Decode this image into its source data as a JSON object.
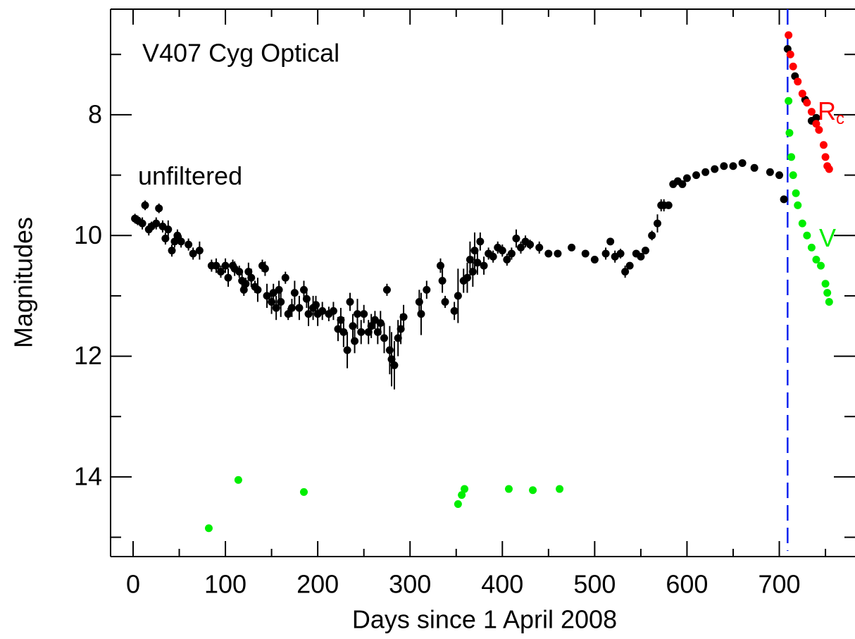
{
  "chart_data": {
    "type": "scatter",
    "title": "V407 Cyg Optical",
    "xlabel": "Days since 1 April 2008",
    "ylabel": "Magnitudes",
    "xlim": [
      -24.4,
      782
    ],
    "ylim": [
      6.25,
      15.32
    ],
    "y_inverted": true,
    "xticks": [
      0,
      100,
      200,
      300,
      400,
      500,
      600,
      700
    ],
    "xticks_minor": [
      50,
      150,
      250,
      350,
      450,
      550,
      650,
      750
    ],
    "yticks": [
      8,
      10,
      12,
      14
    ],
    "yticks_minor": [
      7,
      9,
      11,
      13,
      15
    ],
    "vline": {
      "x": 709,
      "color": "#0022ee"
    },
    "series": [
      {
        "name": "unfiltered",
        "color": "#000000",
        "x": [
          2,
          5,
          10,
          13,
          17,
          20,
          25,
          28,
          32,
          35,
          38,
          42,
          45,
          48,
          52,
          60,
          65,
          72,
          85,
          90,
          95,
          100,
          103,
          108,
          110,
          115,
          118,
          120,
          122,
          125,
          128,
          132,
          135,
          140,
          143,
          145,
          150,
          152,
          155,
          158,
          160,
          165,
          168,
          172,
          175,
          180,
          185,
          188,
          190,
          195,
          198,
          200,
          205,
          212,
          217,
          222,
          225,
          228,
          232,
          235,
          238,
          240,
          243,
          247,
          250,
          255,
          258,
          262,
          265,
          268,
          272,
          275,
          278,
          280,
          283,
          287,
          290,
          293,
          310,
          312,
          318,
          333,
          335,
          338,
          348,
          352,
          358,
          362,
          365,
          368,
          370,
          373,
          376,
          380,
          385,
          390,
          395,
          400,
          405,
          410,
          415,
          420,
          425,
          430,
          440,
          450,
          460,
          475,
          490,
          500,
          512,
          517,
          522,
          528,
          533,
          538,
          545,
          550,
          555,
          562,
          568,
          572,
          575,
          580,
          585,
          590,
          595,
          600,
          610,
          620,
          630,
          640,
          650,
          660,
          673,
          690,
          700,
          705,
          709,
          717,
          728,
          735,
          740
        ],
        "values": [
          9.72,
          9.75,
          9.8,
          9.5,
          9.9,
          9.85,
          9.8,
          9.55,
          9.85,
          10.05,
          9.9,
          10.25,
          10.1,
          10.0,
          10.1,
          10.15,
          10.3,
          10.25,
          10.5,
          10.5,
          10.6,
          10.5,
          10.7,
          10.5,
          10.55,
          10.6,
          10.75,
          10.9,
          10.8,
          10.6,
          10.7,
          10.85,
          10.9,
          10.5,
          10.55,
          11.0,
          11.1,
          10.95,
          11.2,
          10.9,
          11.1,
          10.7,
          11.3,
          11.2,
          10.95,
          11.2,
          10.9,
          11.05,
          11.3,
          11.2,
          11.15,
          11.3,
          11.25,
          11.3,
          11.25,
          11.55,
          11.4,
          11.6,
          11.9,
          11.1,
          11.5,
          11.75,
          11.3,
          11.6,
          11.3,
          11.6,
          11.5,
          11.4,
          11.6,
          11.45,
          11.7,
          10.9,
          11.9,
          12.05,
          12.15,
          11.7,
          11.55,
          11.35,
          11.1,
          11.3,
          10.9,
          10.5,
          10.75,
          11.1,
          11.25,
          11.0,
          10.75,
          10.7,
          10.4,
          10.6,
          10.25,
          10.45,
          10.1,
          10.5,
          10.3,
          10.35,
          10.2,
          10.25,
          10.4,
          10.3,
          10.05,
          10.2,
          10.1,
          10.15,
          10.2,
          10.3,
          10.3,
          10.2,
          10.3,
          10.4,
          10.3,
          10.1,
          10.35,
          10.3,
          10.6,
          10.5,
          10.3,
          10.35,
          10.25,
          10.0,
          9.8,
          9.5,
          9.5,
          9.5,
          9.15,
          9.1,
          9.15,
          9.05,
          9.0,
          8.95,
          8.9,
          8.85,
          8.85,
          8.8,
          8.88,
          8.95,
          9.0,
          9.4,
          6.91,
          7.36,
          7.75,
          8.1,
          8.05
        ],
        "errors": [
          0.08,
          0.08,
          0.1,
          0.08,
          0.1,
          0.08,
          0.1,
          0.08,
          0.1,
          0.1,
          0.15,
          0.1,
          0.1,
          0.1,
          0.1,
          0.1,
          0.1,
          0.15,
          0.1,
          0.12,
          0.1,
          0.12,
          0.15,
          0.1,
          0.12,
          0.1,
          0.15,
          0.1,
          0.1,
          0.15,
          0.15,
          0.1,
          0.2,
          0.1,
          0.12,
          0.2,
          0.2,
          0.15,
          0.2,
          0.15,
          0.25,
          0.1,
          0.1,
          0.15,
          0.2,
          0.2,
          0.15,
          0.15,
          0.2,
          0.2,
          0.15,
          0.2,
          0.15,
          0.12,
          0.15,
          0.2,
          0.2,
          0.25,
          0.3,
          0.15,
          0.2,
          0.2,
          0.25,
          0.2,
          0.15,
          0.2,
          0.2,
          0.15,
          0.2,
          0.2,
          0.25,
          0.1,
          0.4,
          0.45,
          0.4,
          0.3,
          0.25,
          0.2,
          0.2,
          0.35,
          0.15,
          0.12,
          0.2,
          0.1,
          0.15,
          0.45,
          0.2,
          0.25,
          0.3,
          0.25,
          0.3,
          0.2,
          0.15,
          0.15,
          0.1,
          0.1,
          0.1,
          0.1,
          0.1,
          0.1,
          0.15,
          0.1,
          0.1,
          0.08,
          0.1,
          0.05,
          0.05,
          0.05,
          0.05,
          0.05,
          0.1,
          0.05,
          0.1,
          0.08,
          0.1,
          0.05,
          0.05,
          0.05,
          0.05,
          0.08,
          0.15,
          0.1,
          0.1,
          0.05,
          0.05,
          0.05,
          0.05,
          0.05,
          0.05,
          0.05,
          0.05,
          0.05,
          0.05,
          0.05,
          0.05,
          0.05,
          0.05,
          0.05,
          0.03,
          0.03,
          0.03,
          0.03,
          0.03
        ]
      },
      {
        "name": "R",
        "subscript": "c",
        "color": "#ff0000",
        "x": [
          710,
          712,
          715,
          720,
          725,
          730,
          735,
          740,
          743,
          748,
          750,
          752,
          754
        ],
        "values": [
          6.68,
          7.0,
          7.2,
          7.45,
          7.65,
          7.8,
          7.95,
          8.15,
          8.25,
          8.5,
          8.7,
          8.85,
          8.9
        ]
      },
      {
        "name": "V",
        "color": "#00ee00",
        "x": [
          82,
          114,
          185,
          352,
          356,
          359,
          407,
          433,
          462,
          710,
          711,
          713,
          715,
          718,
          720,
          725,
          730,
          735,
          740,
          745,
          750,
          752,
          754
        ],
        "values": [
          14.85,
          14.05,
          14.25,
          14.45,
          14.3,
          14.2,
          14.2,
          14.22,
          14.2,
          7.77,
          8.3,
          8.7,
          9.0,
          9.3,
          9.5,
          9.8,
          10.0,
          10.2,
          10.4,
          10.5,
          10.8,
          10.95,
          11.1
        ]
      }
    ]
  }
}
